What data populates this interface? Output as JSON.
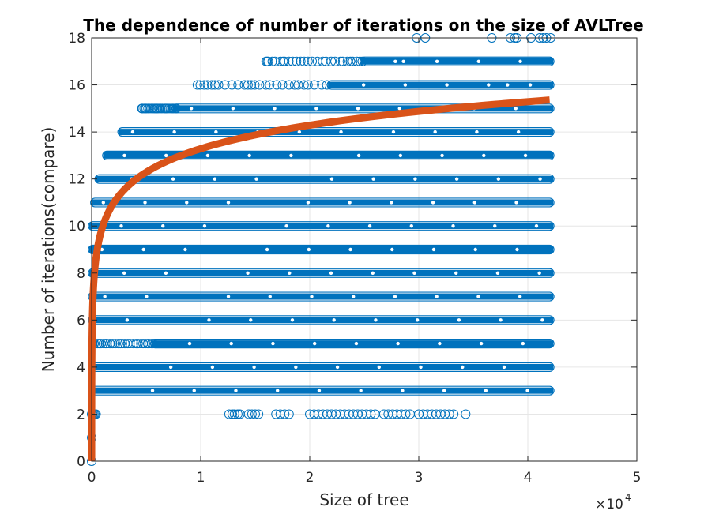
{
  "chart_data": {
    "type": "scatter",
    "title": "The dependence of number of iterations on the size of AVLTree",
    "xlabel": "Size of tree",
    "ylabel": "Number of iterations(compare)",
    "x_multiplier_base": "×10",
    "x_multiplier_exp": "4",
    "xlim": [
      0,
      5
    ],
    "ylim": [
      0,
      18
    ],
    "x_unit_scale": 10000,
    "xticks": [
      "0",
      "1",
      "2",
      "3",
      "4",
      "5"
    ],
    "yticks": [
      "0",
      "2",
      "4",
      "6",
      "8",
      "10",
      "12",
      "14",
      "16",
      "18"
    ],
    "grid": true,
    "colors": {
      "scatter": "#0072BD",
      "fit": "#D95319",
      "grid": "#e6e6e6",
      "axis": "#262626"
    },
    "series": [
      {
        "kind": "dense-band",
        "note_levels": [
          {
            "y": 3,
            "x_start": 250,
            "x_end": 42000
          },
          {
            "y": 4,
            "x_start": 150,
            "x_end": 42000
          },
          {
            "y": 5,
            "x_start": 100,
            "x_end": 42000,
            "sparse_until": 5800
          },
          {
            "y": 6,
            "x_start": 100,
            "x_end": 42000
          },
          {
            "y": 7,
            "x_start": 100,
            "x_end": 42000
          },
          {
            "y": 8,
            "x_start": 100,
            "x_end": 42000
          },
          {
            "y": 9,
            "x_start": 100,
            "x_end": 42000
          },
          {
            "y": 10,
            "x_start": 100,
            "x_end": 42000
          },
          {
            "y": 11,
            "x_start": 300,
            "x_end": 42000
          },
          {
            "y": 12,
            "x_start": 700,
            "x_end": 42000
          },
          {
            "y": 13,
            "x_start": 1400,
            "x_end": 42000
          },
          {
            "y": 14,
            "x_start": 2800,
            "x_end": 42000
          },
          {
            "y": 15,
            "x_start": 4600,
            "x_end": 42000,
            "sparse_until": 7800
          },
          {
            "y": 16,
            "x_start": 9700,
            "x_end": 42000,
            "sparse_until": 22000
          },
          {
            "y": 17,
            "x_start": 16000,
            "x_end": 42000,
            "sparse_until": 25000
          }
        ]
      },
      {
        "kind": "sparse-points",
        "points": [
          [
            0,
            0
          ],
          [
            0,
            1
          ],
          [
            0,
            2
          ],
          [
            100,
            2
          ],
          [
            200,
            2
          ],
          [
            300,
            2
          ],
          [
            400,
            2
          ],
          [
            12600,
            2
          ],
          [
            12900,
            2
          ],
          [
            13100,
            2
          ],
          [
            13400,
            2
          ],
          [
            13600,
            2
          ],
          [
            14400,
            2
          ],
          [
            14700,
            2
          ],
          [
            15000,
            2
          ],
          [
            15300,
            2
          ],
          [
            16900,
            2
          ],
          [
            17300,
            2
          ],
          [
            17700,
            2
          ],
          [
            18100,
            2
          ],
          [
            20000,
            2
          ],
          [
            20400,
            2
          ],
          [
            20800,
            2
          ],
          [
            21200,
            2
          ],
          [
            21600,
            2
          ],
          [
            22000,
            2
          ],
          [
            22400,
            2
          ],
          [
            22800,
            2
          ],
          [
            23200,
            2
          ],
          [
            23600,
            2
          ],
          [
            24000,
            2
          ],
          [
            24400,
            2
          ],
          [
            24800,
            2
          ],
          [
            25200,
            2
          ],
          [
            25600,
            2
          ],
          [
            26000,
            2
          ],
          [
            26800,
            2
          ],
          [
            27200,
            2
          ],
          [
            27600,
            2
          ],
          [
            28000,
            2
          ],
          [
            28400,
            2
          ],
          [
            28800,
            2
          ],
          [
            29200,
            2
          ],
          [
            30000,
            2
          ],
          [
            30400,
            2
          ],
          [
            30800,
            2
          ],
          [
            31200,
            2
          ],
          [
            31600,
            2
          ],
          [
            32000,
            2
          ],
          [
            32400,
            2
          ],
          [
            32800,
            2
          ],
          [
            33200,
            2
          ],
          [
            34300,
            2
          ],
          [
            16100,
            17
          ],
          [
            17700,
            17
          ],
          [
            29800,
            18
          ],
          [
            30600,
            18
          ],
          [
            36700,
            18
          ],
          [
            38400,
            18
          ],
          [
            38800,
            18
          ],
          [
            39000,
            18
          ],
          [
            40300,
            18
          ],
          [
            41100,
            18
          ],
          [
            41400,
            18
          ],
          [
            41700,
            18
          ],
          [
            42100,
            18
          ]
        ]
      },
      {
        "name": "",
        "kind": "fit-line",
        "formula": "log2(x)",
        "x_start": 1,
        "x_end": 42000
      }
    ]
  }
}
